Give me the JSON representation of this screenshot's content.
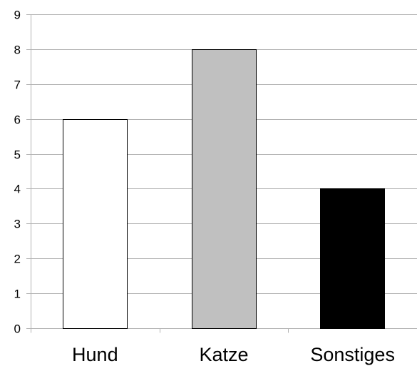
{
  "chart_data": {
    "type": "bar",
    "categories": [
      "Hund",
      "Katze",
      "Sonstiges"
    ],
    "values": [
      6,
      8,
      4
    ],
    "bar_colors": [
      "#ffffff",
      "#c0c0c0",
      "#000000"
    ],
    "bar_outline_color": "#000000",
    "gridline_color": "#b3b3b3",
    "ylim": [
      0,
      9
    ],
    "ytick_step": 1,
    "grid": true,
    "legend": false,
    "title": "",
    "xlabel": "",
    "ylabel": ""
  }
}
